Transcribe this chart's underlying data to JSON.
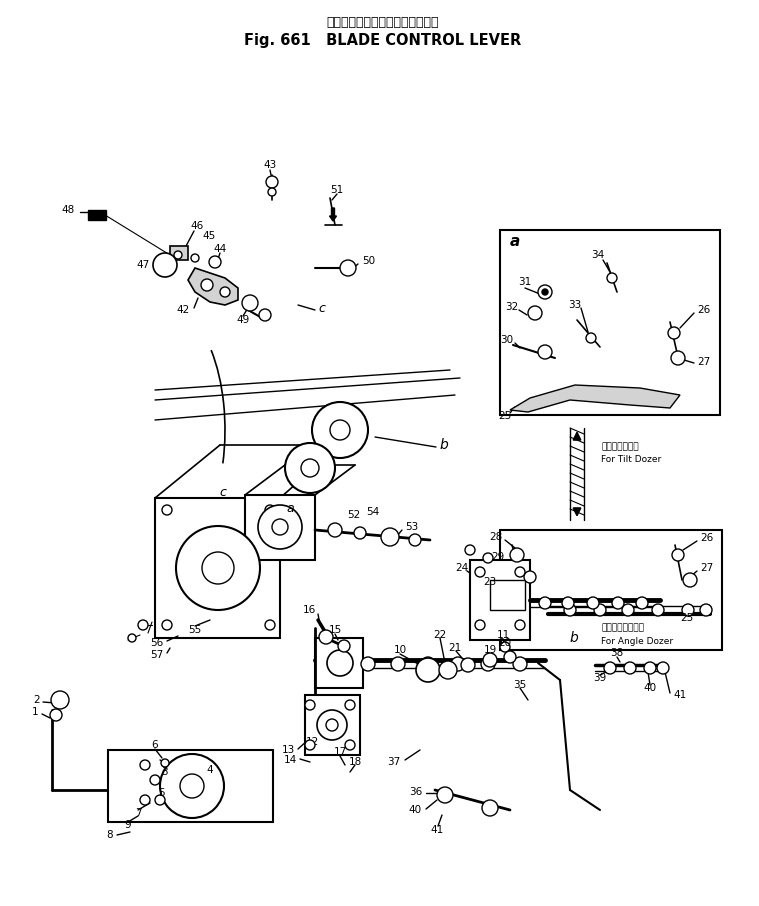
{
  "title_jp": "ブレード　コントロール　レバー",
  "title_en": "Fig. 661   BLADE CONTROL LEVER",
  "bg_color": "#ffffff",
  "lc": "#000000",
  "tilt_jp": "チルトドーザ用",
  "tilt_en": "For Tilt Dozer",
  "angle_jp": "アングルドーザ用",
  "angle_en": "For Angle Dozer"
}
